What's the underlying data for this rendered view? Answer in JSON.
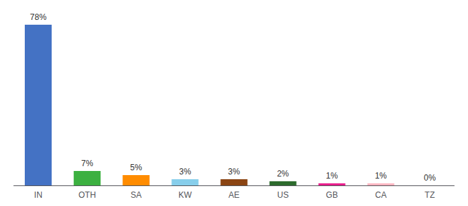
{
  "chart_data": {
    "type": "bar",
    "categories": [
      "IN",
      "OTH",
      "SA",
      "KW",
      "AE",
      "US",
      "GB",
      "CA",
      "TZ"
    ],
    "values": [
      78,
      7,
      5,
      3,
      3,
      2,
      1,
      1,
      0
    ],
    "value_labels": [
      "78%",
      "7%",
      "5%",
      "3%",
      "3%",
      "2%",
      "1%",
      "1%",
      "0%"
    ],
    "colors": [
      "#4472c4",
      "#3cb040",
      "#ff8c00",
      "#87ceeb",
      "#8b4513",
      "#2d6b2d",
      "#e91e8c",
      "#ffb6c1",
      "#d3d3d3"
    ],
    "ylim": [
      0,
      82
    ],
    "grid": false,
    "data_labels": true,
    "tick_labels": "x"
  }
}
